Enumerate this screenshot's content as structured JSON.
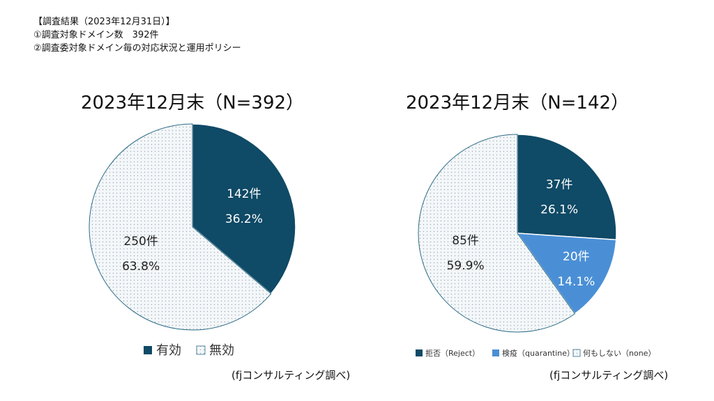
{
  "header": {
    "line1": "【調査結果（2023年12月31日）】",
    "line2": "①調査対象ドメイン数　392件",
    "line3": "②調査委対象ドメイン毎の対応状況と運用ポリシー"
  },
  "colors": {
    "dark": "#0f4a66",
    "blue": "#4a8fd6",
    "dotted_bg": "#f4f7f9",
    "dot": "#9aaab5",
    "outline": "#2c6b86"
  },
  "chart_data": [
    {
      "type": "pie",
      "title": "2023年12月末（N=392）",
      "slices": [
        {
          "name": "有効",
          "count": 142,
          "percent": 36.2,
          "count_label": "142件",
          "percent_label": "36.2%",
          "fill": "dark"
        },
        {
          "name": "無効",
          "count": 250,
          "percent": 63.8,
          "count_label": "250件",
          "percent_label": "63.8%",
          "fill": "dotted"
        }
      ],
      "legend": [
        "有効",
        "無効"
      ],
      "legend_placement": "bottom",
      "source": "(fjコンサルティング調べ)"
    },
    {
      "type": "pie",
      "title": "2023年12月末（N=142）",
      "slices": [
        {
          "name": "拒否（Reject）",
          "count": 37,
          "percent": 26.1,
          "count_label": "37件",
          "percent_label": "26.1%",
          "fill": "dark"
        },
        {
          "name": "検疫（quarantine）",
          "count": 20,
          "percent": 14.1,
          "count_label": "20件",
          "percent_label": "14.1%",
          "fill": "blue"
        },
        {
          "name": "何もしない（none）",
          "count": 85,
          "percent": 59.9,
          "count_label": "85件",
          "percent_label": "59.9%",
          "fill": "dotted"
        }
      ],
      "legend": [
        "拒否（Reject）",
        "検疫（quarantine）",
        "何もしない（none）"
      ],
      "legend_placement": "bottom",
      "source": "(fjコンサルティング調べ)"
    }
  ]
}
